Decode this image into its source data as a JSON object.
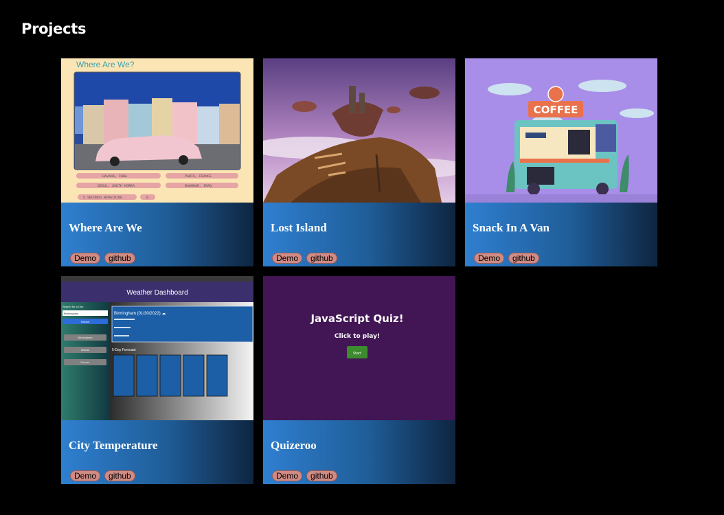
{
  "page": {
    "heading": "Projects"
  },
  "projects": [
    {
      "title": "Where Are We",
      "demo_label": "Demo",
      "github_label": "github",
      "thumb": {
        "game_title": "Where Are We?",
        "answers": [
          "HAVANA, CUBA",
          "PARIS, FRANCE",
          "SEOUL, SOUTH KOREA",
          "BAGHDAD, IRAQ"
        ],
        "timer_label": "5 SECONDS REMAINING",
        "score": "0"
      }
    },
    {
      "title": "Lost Island",
      "demo_label": "Demo",
      "github_label": "github"
    },
    {
      "title": "Snack In A Van",
      "demo_label": "Demo",
      "github_label": "github",
      "thumb": {
        "sign": "COFFEE"
      }
    },
    {
      "title": "City Temperature",
      "demo_label": "Demo",
      "github_label": "github",
      "thumb": {
        "app_title": "Weather Dashboard",
        "search_label": "Search for a City:",
        "search_value": "Birmingham",
        "search_button": "Search",
        "history": [
          "Birmingham",
          "Atlanta",
          "Denver"
        ],
        "today": "Birmingham (01/30/2022) ☁",
        "forecast_title": "5-Day Forecast:"
      }
    },
    {
      "title": "Quizeroo",
      "demo_label": "Demo",
      "github_label": "github",
      "thumb": {
        "quiz_title": "JavaScript Quiz!",
        "subtitle": "Click to play!",
        "start": "Start"
      }
    }
  ],
  "colors": {
    "background": "#000000",
    "card_gradient_start": "#2f7fd0",
    "card_gradient_end": "#0e2540",
    "pill": "#cf8b84",
    "quiz_bg": "#421554",
    "quiz_button": "#3c8b2e"
  }
}
